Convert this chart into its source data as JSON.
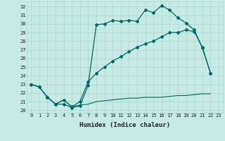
{
  "xlabel": "Humidex (Indice chaleur)",
  "bg_color": "#c8eae4",
  "grid_color": "#a8d8d0",
  "line_color": "#006868",
  "xlim": [
    -0.5,
    23.5
  ],
  "ylim": [
    19.7,
    32.6
  ],
  "yticks": [
    20,
    21,
    22,
    23,
    24,
    25,
    26,
    27,
    28,
    29,
    30,
    31,
    32
  ],
  "xticks": [
    0,
    1,
    2,
    3,
    4,
    5,
    6,
    7,
    8,
    9,
    10,
    11,
    12,
    13,
    14,
    15,
    16,
    17,
    18,
    19,
    20,
    21,
    22,
    23
  ],
  "line1_x": [
    0,
    1,
    2,
    3,
    4,
    5,
    6,
    7,
    8,
    9,
    10,
    11,
    12,
    13,
    14,
    15,
    16,
    17,
    18,
    19,
    20,
    21,
    22
  ],
  "line1_y": [
    23.0,
    22.7,
    21.5,
    20.7,
    20.7,
    20.3,
    20.5,
    22.9,
    29.9,
    30.0,
    30.4,
    30.3,
    30.4,
    30.3,
    31.6,
    31.3,
    32.1,
    31.6,
    30.7,
    30.1,
    29.3,
    27.2,
    24.3
  ],
  "line2_x": [
    0,
    1,
    2,
    3,
    4,
    5,
    6,
    7,
    8,
    9,
    10,
    11,
    12,
    13,
    14,
    15,
    16,
    17,
    18,
    19,
    20,
    21,
    22
  ],
  "line2_y": [
    23.0,
    22.7,
    21.5,
    20.7,
    21.2,
    20.4,
    21.0,
    23.3,
    24.3,
    25.0,
    25.7,
    26.2,
    26.8,
    27.3,
    27.7,
    28.0,
    28.5,
    29.0,
    29.0,
    29.3,
    29.1,
    27.3,
    24.3
  ],
  "line3_x": [
    0,
    1,
    2,
    3,
    4,
    5,
    6,
    7,
    8,
    9,
    10,
    11,
    12,
    13,
    14,
    15,
    16,
    17,
    18,
    19,
    20,
    21,
    22
  ],
  "line3_y": [
    23.0,
    22.7,
    21.5,
    20.7,
    21.2,
    20.4,
    20.6,
    20.7,
    21.0,
    21.1,
    21.2,
    21.3,
    21.4,
    21.4,
    21.5,
    21.5,
    21.5,
    21.6,
    21.7,
    21.7,
    21.8,
    21.9,
    21.9
  ]
}
